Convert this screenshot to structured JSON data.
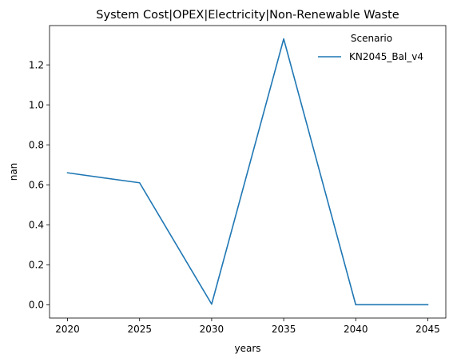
{
  "chart_data": {
    "type": "line",
    "title": "System Cost|OPEX|Electricity|Non-Renewable Waste",
    "xlabel": "years",
    "ylabel": "nan",
    "x": [
      2020,
      2025,
      2030,
      2035,
      2040,
      2045
    ],
    "series": [
      {
        "name": "KN2045_Bal_v4",
        "color": "#1f77b4",
        "values": [
          0.66,
          0.61,
          0.003,
          1.33,
          0.0,
          0.0
        ]
      }
    ],
    "legend": {
      "title": "Scenario",
      "placement": "top-right"
    },
    "xlim": [
      2018.75,
      2046.25
    ],
    "ylim": [
      -0.0665,
      1.3965
    ],
    "xticks": [
      2020,
      2025,
      2030,
      2035,
      2040,
      2045
    ],
    "xtick_labels": [
      "2020",
      "2025",
      "2030",
      "2035",
      "2040",
      "2045"
    ],
    "yticks": [
      0.0,
      0.2,
      0.4,
      0.6,
      0.8,
      1.0,
      1.2
    ],
    "ytick_labels": [
      "0.0",
      "0.2",
      "0.4",
      "0.6",
      "0.8",
      "1.0",
      "1.2"
    ],
    "grid": false
  }
}
